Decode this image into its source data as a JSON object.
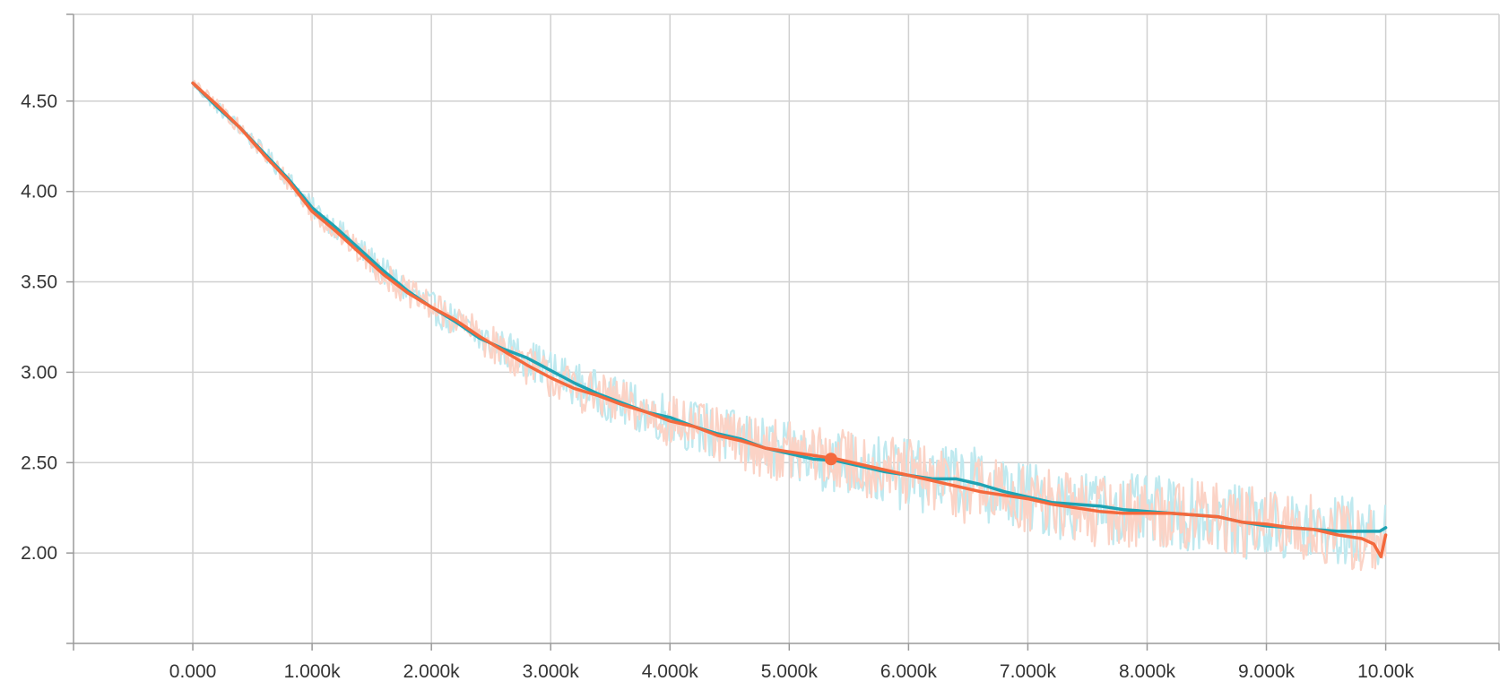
{
  "chart_data": {
    "type": "line",
    "title": "",
    "xlabel": "",
    "ylabel": "",
    "xlim": [
      -1000,
      10950
    ],
    "ylim": [
      1.5,
      4.98
    ],
    "x_ticks": [
      {
        "value": 0,
        "label": "0.000"
      },
      {
        "value": 1000,
        "label": "1.000k"
      },
      {
        "value": 2000,
        "label": "2.000k"
      },
      {
        "value": 3000,
        "label": "3.000k"
      },
      {
        "value": 4000,
        "label": "4.000k"
      },
      {
        "value": 5000,
        "label": "5.000k"
      },
      {
        "value": 6000,
        "label": "6.000k"
      },
      {
        "value": 7000,
        "label": "7.000k"
      },
      {
        "value": 8000,
        "label": "8.000k"
      },
      {
        "value": 9000,
        "label": "9.000k"
      },
      {
        "value": 10000,
        "label": "10.00k"
      }
    ],
    "y_ticks": [
      {
        "value": 2.0,
        "label": "2.00"
      },
      {
        "value": 2.5,
        "label": "2.50"
      },
      {
        "value": 3.0,
        "label": "3.00"
      },
      {
        "value": 3.5,
        "label": "3.50"
      },
      {
        "value": 4.0,
        "label": "4.00"
      },
      {
        "value": 4.5,
        "label": "4.50"
      }
    ],
    "grid": true,
    "legend": "none",
    "series": [
      {
        "color": "#1ea3b3",
        "raw_color": "#bfe9ef",
        "x": [
          0,
          200,
          400,
          600,
          800,
          1000,
          1200,
          1400,
          1600,
          1800,
          2000,
          2200,
          2400,
          2600,
          2800,
          3000,
          3200,
          3400,
          3600,
          3800,
          4000,
          4200,
          4400,
          4600,
          4800,
          5000,
          5200,
          5400,
          5600,
          5800,
          6000,
          6200,
          6400,
          6600,
          6800,
          7000,
          7200,
          7400,
          7600,
          7800,
          8000,
          8200,
          8400,
          8600,
          8800,
          9000,
          9200,
          9400,
          9600,
          9800,
          9950,
          10000
        ],
        "values": [
          4.6,
          4.47,
          4.35,
          4.21,
          4.07,
          3.91,
          3.8,
          3.68,
          3.56,
          3.45,
          3.36,
          3.28,
          3.19,
          3.13,
          3.08,
          3.01,
          2.94,
          2.88,
          2.83,
          2.78,
          2.75,
          2.7,
          2.66,
          2.63,
          2.58,
          2.55,
          2.52,
          2.51,
          2.48,
          2.45,
          2.43,
          2.41,
          2.41,
          2.38,
          2.34,
          2.31,
          2.28,
          2.27,
          2.26,
          2.24,
          2.23,
          2.22,
          2.21,
          2.2,
          2.17,
          2.15,
          2.14,
          2.13,
          2.12,
          2.12,
          2.12,
          2.14
        ]
      },
      {
        "color": "#f4693d",
        "raw_color": "#fbd3c6",
        "x": [
          0,
          200,
          400,
          600,
          800,
          1000,
          1200,
          1400,
          1600,
          1800,
          2000,
          2200,
          2400,
          2600,
          2800,
          3000,
          3200,
          3400,
          3600,
          3800,
          4000,
          4200,
          4400,
          4600,
          4800,
          5000,
          5200,
          5400,
          5600,
          5800,
          6000,
          6200,
          6400,
          6600,
          6800,
          7000,
          7200,
          7400,
          7600,
          7800,
          8000,
          8200,
          8400,
          8600,
          8800,
          9000,
          9200,
          9400,
          9600,
          9800,
          9900,
          9960,
          10000
        ],
        "values": [
          4.6,
          4.48,
          4.35,
          4.2,
          4.06,
          3.89,
          3.78,
          3.66,
          3.54,
          3.44,
          3.36,
          3.29,
          3.2,
          3.12,
          3.04,
          2.97,
          2.91,
          2.87,
          2.82,
          2.78,
          2.73,
          2.7,
          2.65,
          2.62,
          2.58,
          2.56,
          2.54,
          2.52,
          2.49,
          2.46,
          2.43,
          2.4,
          2.37,
          2.34,
          2.32,
          2.3,
          2.27,
          2.25,
          2.23,
          2.22,
          2.22,
          2.22,
          2.21,
          2.2,
          2.17,
          2.16,
          2.14,
          2.13,
          2.1,
          2.08,
          2.05,
          1.98,
          2.1
        ]
      }
    ],
    "highlight_point": {
      "x": 5350,
      "y": 2.52,
      "color": "#f4693d"
    }
  }
}
